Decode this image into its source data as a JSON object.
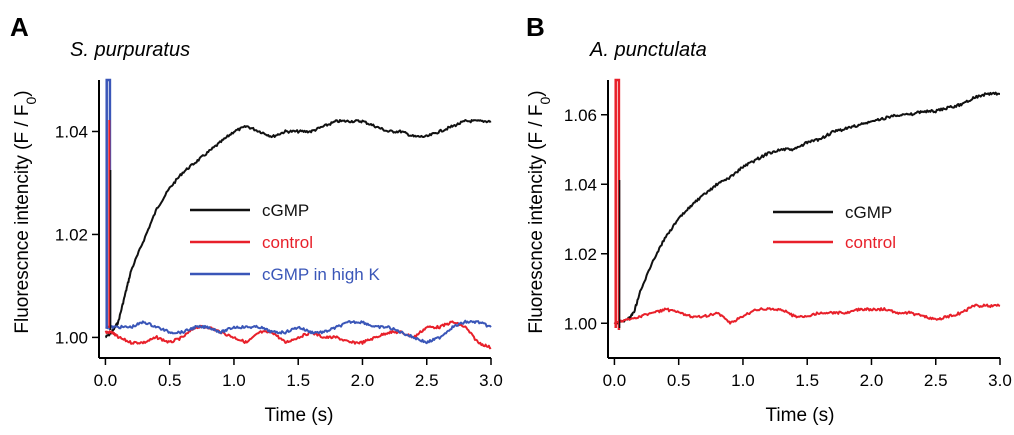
{
  "colors": {
    "cGMP": "#111111",
    "control": "#e8202a",
    "highK": "#3a56b8"
  },
  "chart_data": [
    {
      "type": "line",
      "panel_label": "A",
      "title": "S. purpuratus",
      "xlabel": "Time (s)",
      "ylabel": "Fluorescnce intencity (F / F0)",
      "ylabel_main": "Fluorescnce intencity (F / F",
      "ylabel_sub": "0",
      "ylabel_close": ")",
      "xlim": [
        -0.05,
        3.0
      ],
      "ylim": [
        0.996,
        1.05
      ],
      "xticks": [
        "0.0",
        "0.5",
        "1.0",
        "1.5",
        "2.0",
        "2.5",
        "3.0"
      ],
      "xtick_values": [
        0.0,
        0.5,
        1.0,
        1.5,
        2.0,
        2.5,
        3.0
      ],
      "yticks": [
        "1.00",
        "1.02",
        "1.04"
      ],
      "ytick_values": [
        1.0,
        1.02,
        1.04
      ],
      "legend_position": "center-right",
      "series": [
        {
          "name": "cGMP",
          "color": "#111111",
          "x": [
            0.0,
            0.05,
            0.1,
            0.15,
            0.2,
            0.3,
            0.4,
            0.5,
            0.6,
            0.7,
            0.8,
            0.9,
            1.0,
            1.1,
            1.2,
            1.3,
            1.4,
            1.5,
            1.6,
            1.7,
            1.8,
            1.9,
            2.0,
            2.1,
            2.2,
            2.3,
            2.4,
            2.5,
            2.6,
            2.7,
            2.8,
            2.9,
            3.0
          ],
          "y": [
            1.0,
            1.001,
            1.003,
            1.008,
            1.013,
            1.019,
            1.025,
            1.029,
            1.032,
            1.034,
            1.036,
            1.038,
            1.04,
            1.041,
            1.04,
            1.039,
            1.04,
            1.04,
            1.04,
            1.041,
            1.042,
            1.042,
            1.042,
            1.041,
            1.04,
            1.04,
            1.039,
            1.039,
            1.04,
            1.041,
            1.042,
            1.042,
            1.042
          ]
        },
        {
          "name": "control",
          "color": "#e8202a",
          "x": [
            0.0,
            0.05,
            0.1,
            0.2,
            0.3,
            0.4,
            0.5,
            0.6,
            0.7,
            0.8,
            0.9,
            1.0,
            1.1,
            1.2,
            1.3,
            1.4,
            1.5,
            1.6,
            1.7,
            1.8,
            1.9,
            2.0,
            2.1,
            2.2,
            2.3,
            2.4,
            2.5,
            2.6,
            2.7,
            2.8,
            2.9,
            3.0
          ],
          "y": [
            1.001,
            1.001,
            1.0,
            0.999,
            0.999,
            1.0,
            0.999,
            1.0,
            1.002,
            1.002,
            1.001,
            1.0,
            0.999,
            1.001,
            1.001,
            0.999,
            1.0,
            1.001,
            1.0,
            1.0,
            0.999,
            0.999,
            1.0,
            1.001,
            1.001,
            1.0,
            1.002,
            1.002,
            1.003,
            1.002,
            0.999,
            0.998
          ]
        },
        {
          "name": "cGMP in high K",
          "color": "#3a56b8",
          "x": [
            0.0,
            0.1,
            0.2,
            0.3,
            0.4,
            0.5,
            0.6,
            0.7,
            0.8,
            0.9,
            1.0,
            1.1,
            1.2,
            1.3,
            1.4,
            1.5,
            1.6,
            1.7,
            1.8,
            1.9,
            2.0,
            2.1,
            2.2,
            2.3,
            2.4,
            2.5,
            2.6,
            2.7,
            2.8,
            2.9,
            3.0
          ],
          "y": [
            1.002,
            1.002,
            1.002,
            1.003,
            1.002,
            1.001,
            1.001,
            1.002,
            1.002,
            1.001,
            1.002,
            1.002,
            1.002,
            1.001,
            1.001,
            1.002,
            1.001,
            1.001,
            1.002,
            1.003,
            1.003,
            1.002,
            1.002,
            1.001,
            1.0,
            0.999,
            1.0,
            1.002,
            1.003,
            1.003,
            1.002
          ]
        }
      ]
    },
    {
      "type": "line",
      "panel_label": "B",
      "title": "A. punctulata",
      "xlabel": "Time (s)",
      "ylabel": "Fluorescnce intencity (F / F0)",
      "ylabel_main": "Fluorescnce intencity (F / F",
      "ylabel_sub": "0",
      "ylabel_close": ")",
      "xlim": [
        -0.05,
        3.0
      ],
      "ylim": [
        0.99,
        1.07
      ],
      "xticks": [
        "0.0",
        "0.5",
        "1.0",
        "1.5",
        "2.0",
        "2.5",
        "3.0"
      ],
      "xtick_values": [
        0.0,
        0.5,
        1.0,
        1.5,
        2.0,
        2.5,
        3.0
      ],
      "yticks": [
        "1.00",
        "1.02",
        "1.04",
        "1.06"
      ],
      "ytick_values": [
        1.0,
        1.02,
        1.04,
        1.06
      ],
      "legend_position": "center-right",
      "series": [
        {
          "name": "cGMP",
          "color": "#111111",
          "x": [
            0.0,
            0.1,
            0.15,
            0.2,
            0.3,
            0.4,
            0.5,
            0.6,
            0.7,
            0.8,
            0.9,
            1.0,
            1.1,
            1.2,
            1.3,
            1.4,
            1.5,
            1.6,
            1.7,
            1.8,
            1.9,
            2.0,
            2.1,
            2.2,
            2.3,
            2.4,
            2.5,
            2.6,
            2.7,
            2.8,
            2.9,
            3.0
          ],
          "y": [
            1.0,
            1.001,
            1.003,
            1.009,
            1.018,
            1.025,
            1.03,
            1.034,
            1.037,
            1.04,
            1.042,
            1.045,
            1.047,
            1.049,
            1.05,
            1.05,
            1.052,
            1.053,
            1.055,
            1.056,
            1.057,
            1.058,
            1.059,
            1.06,
            1.06,
            1.061,
            1.061,
            1.062,
            1.063,
            1.065,
            1.066,
            1.066
          ]
        },
        {
          "name": "control",
          "color": "#e8202a",
          "x": [
            0.0,
            0.1,
            0.2,
            0.3,
            0.4,
            0.5,
            0.6,
            0.7,
            0.8,
            0.9,
            1.0,
            1.1,
            1.2,
            1.3,
            1.4,
            1.5,
            1.6,
            1.7,
            1.8,
            1.9,
            2.0,
            2.1,
            2.2,
            2.3,
            2.4,
            2.5,
            2.6,
            2.7,
            2.8,
            2.9,
            3.0
          ],
          "y": [
            1.0,
            1.001,
            1.002,
            1.003,
            1.004,
            1.003,
            1.002,
            1.002,
            1.003,
            1.0,
            1.002,
            1.004,
            1.004,
            1.004,
            1.002,
            1.002,
            1.003,
            1.003,
            1.003,
            1.004,
            1.004,
            1.004,
            1.003,
            1.003,
            1.002,
            1.001,
            1.002,
            1.003,
            1.005,
            1.005,
            1.005
          ]
        }
      ]
    }
  ]
}
